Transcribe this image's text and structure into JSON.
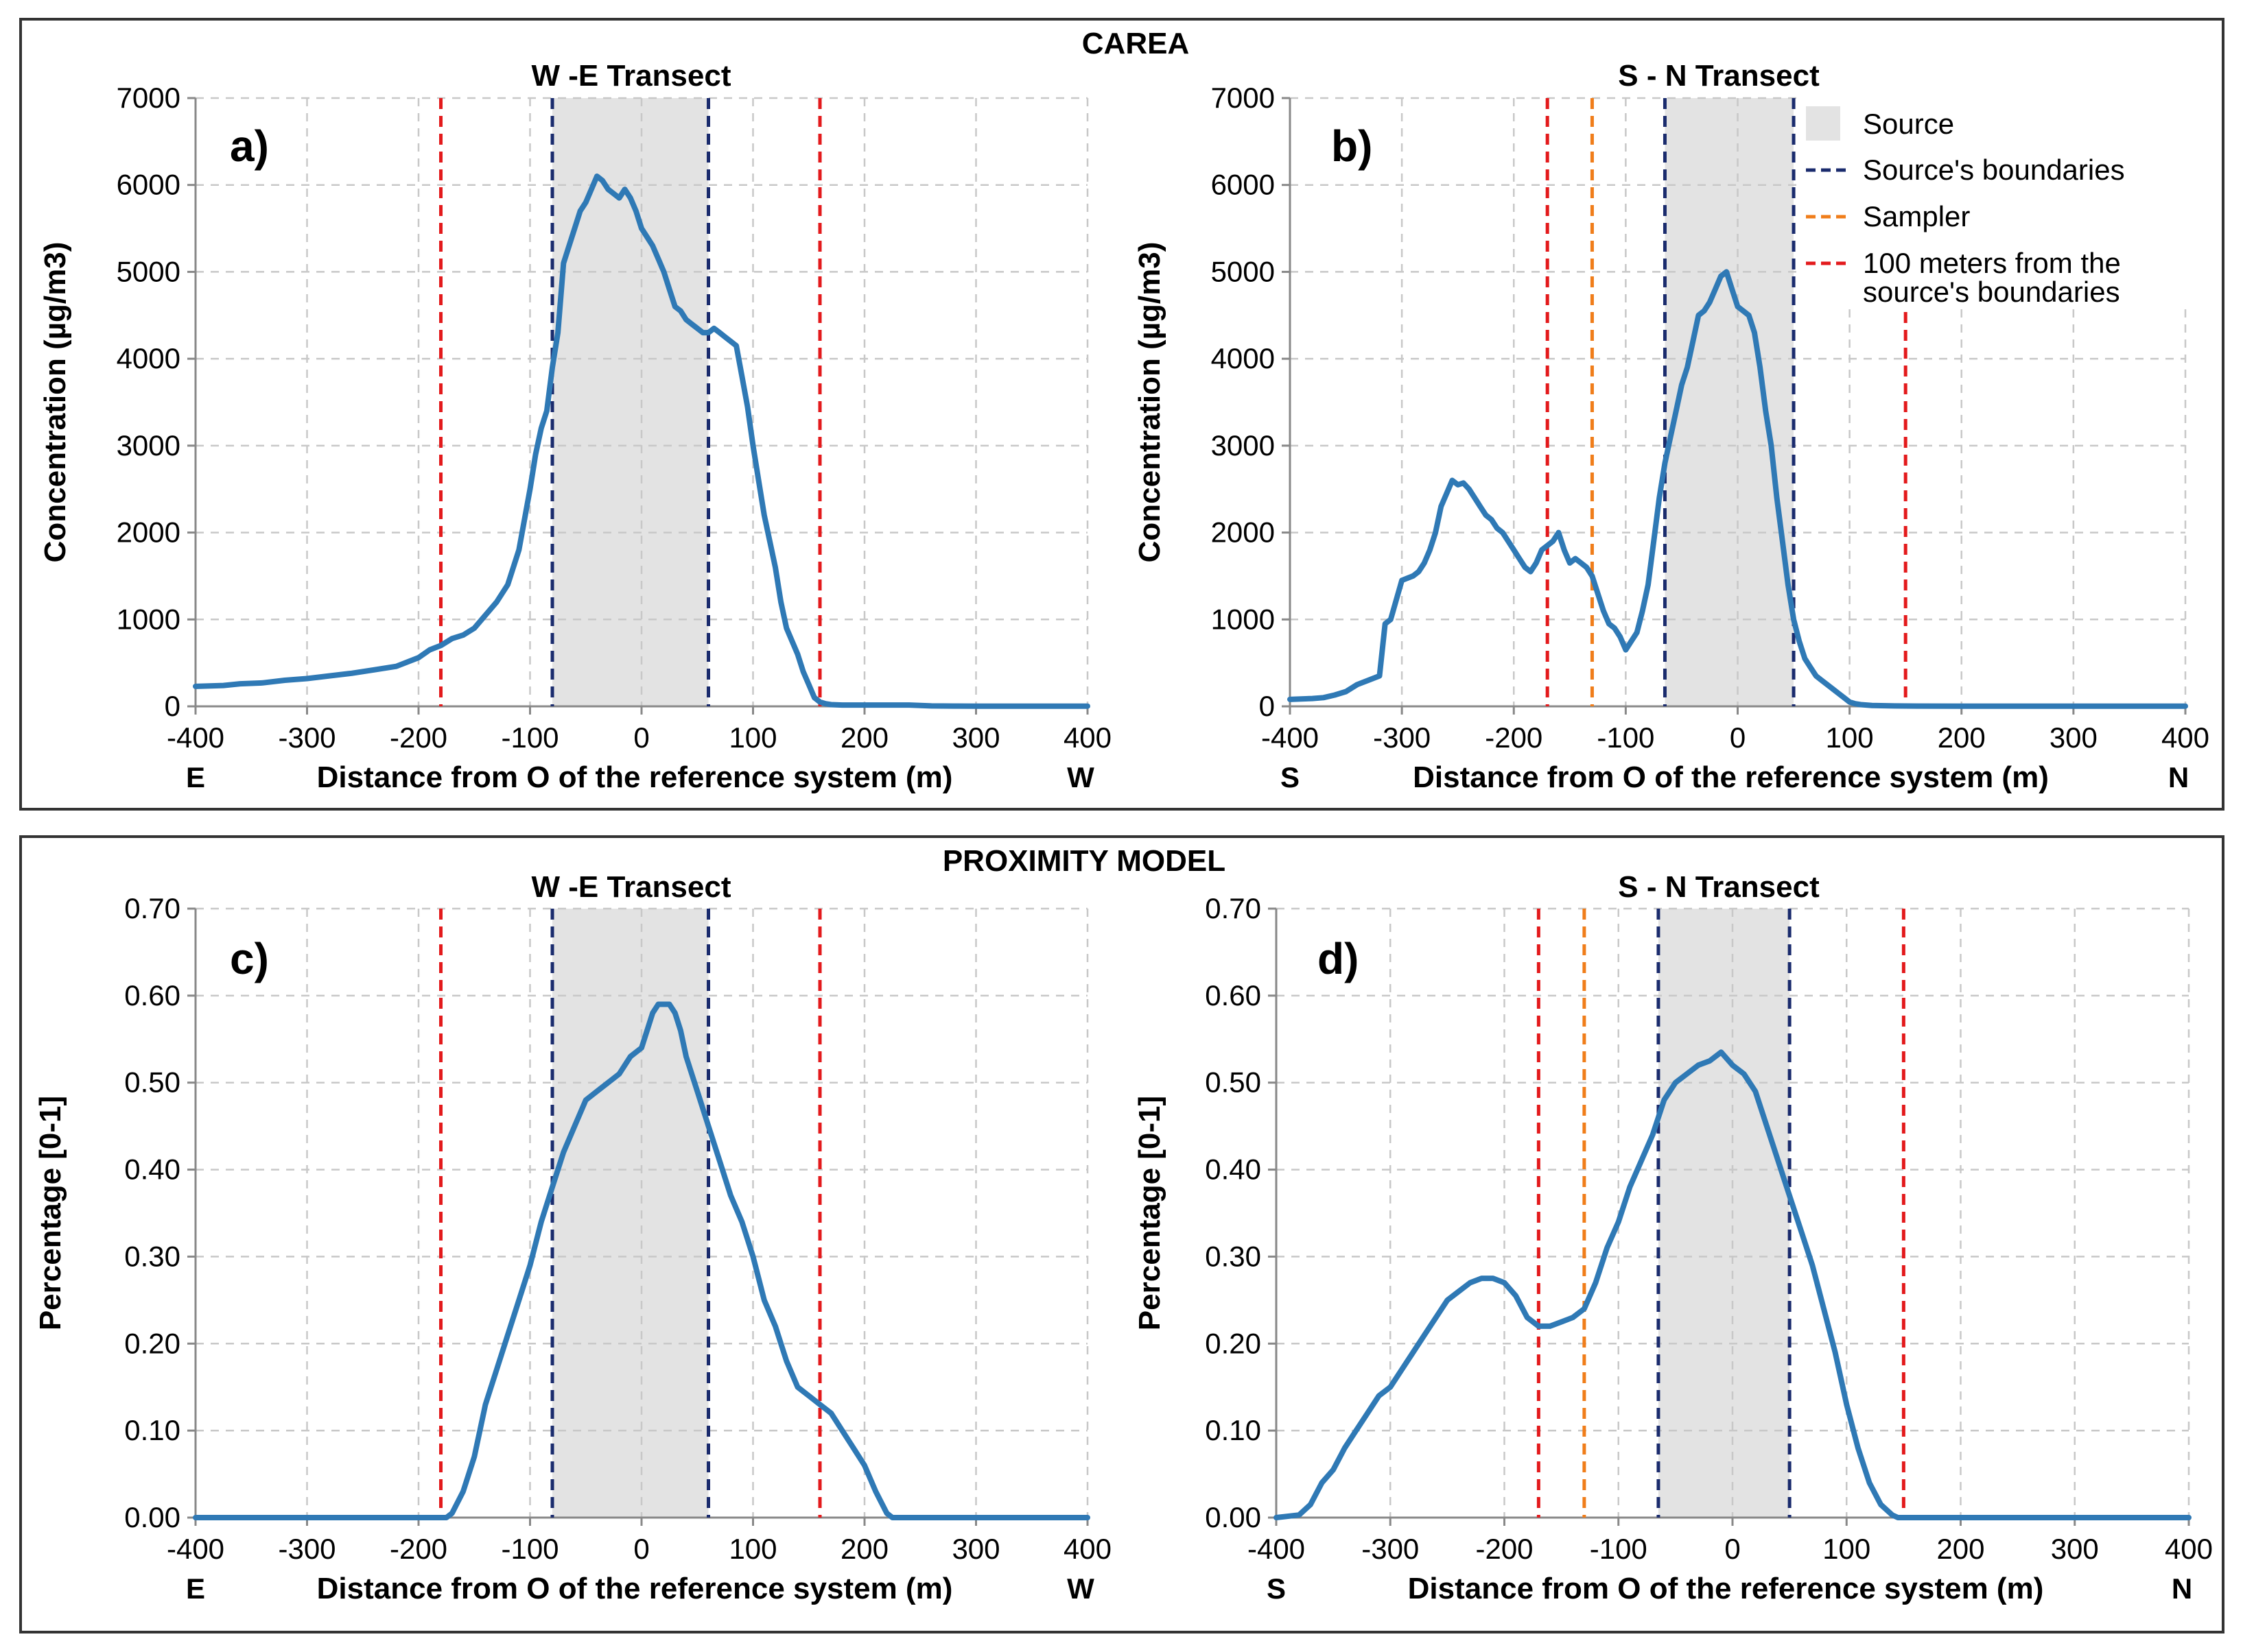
{
  "sections": [
    {
      "title": "CAREA"
    },
    {
      "title": "PROXIMITY MODEL"
    }
  ],
  "legend": {
    "source": "Source",
    "source_boundaries": "Source's boundaries",
    "sampler": "Sampler",
    "hundred_m_line1": "100 meters from the",
    "hundred_m_line2": "source's boundaries"
  },
  "colors": {
    "series_line": "#2f79b5",
    "series_line_light": "#5b9bd0",
    "source_fill": "#e3e3e3",
    "boundary": "#1a2b6d",
    "sampler": "#f07d1a",
    "hundred_m": "#e31a1c"
  },
  "chart_data": [
    {
      "type": "line",
      "panel_label": "a)",
      "title": "W -E Transect",
      "xlabel": "Distance from O of the reference system (m)",
      "ylabel": "Concentration (µg/m3)",
      "x_left_label": "E",
      "x_right_label": "W",
      "xlim": [
        -400,
        400
      ],
      "ylim": [
        0,
        7000
      ],
      "xticks": [
        -400,
        -300,
        -200,
        -100,
        0,
        100,
        200,
        300,
        400
      ],
      "yticks": [
        0,
        1000,
        2000,
        3000,
        4000,
        5000,
        6000,
        7000
      ],
      "ytick_labels": [
        "0",
        "1000",
        "2000",
        "3000",
        "4000",
        "5000",
        "6000",
        "7000"
      ],
      "grid": true,
      "source_band": [
        -80,
        60
      ],
      "boundaries": [
        -80,
        60
      ],
      "hundred_m_lines": [
        -180,
        160
      ],
      "sampler": null,
      "series": [
        {
          "x": [
            -400,
            -375,
            -360,
            -340,
            -320,
            -300,
            -280,
            -260,
            -240,
            -220,
            -200,
            -190,
            -180,
            -170,
            -160,
            -150,
            -140,
            -130,
            -120,
            -110,
            -100,
            -95,
            -90,
            -85,
            -80,
            -75,
            -70,
            -65,
            -60,
            -55,
            -50,
            -45,
            -40,
            -35,
            -30,
            -25,
            -20,
            -15,
            -10,
            -5,
            0,
            5,
            10,
            15,
            20,
            25,
            30,
            35,
            40,
            45,
            50,
            55,
            60,
            65,
            70,
            75,
            80,
            85,
            90,
            95,
            100,
            105,
            110,
            115,
            120,
            125,
            130,
            135,
            140,
            145,
            150,
            155,
            160,
            165,
            170,
            180,
            200,
            220,
            240,
            250,
            260,
            280,
            300,
            320,
            340,
            360,
            380,
            400
          ],
          "y": [
            230,
            240,
            260,
            270,
            300,
            320,
            350,
            380,
            420,
            460,
            560,
            650,
            700,
            780,
            820,
            900,
            1050,
            1200,
            1400,
            1800,
            2500,
            2900,
            3200,
            3400,
            3900,
            4300,
            5100,
            5300,
            5500,
            5700,
            5800,
            5950,
            6100,
            6050,
            5950,
            5900,
            5850,
            5950,
            5850,
            5700,
            5500,
            5400,
            5300,
            5150,
            5000,
            4800,
            4600,
            4550,
            4450,
            4400,
            4350,
            4300,
            4300,
            4350,
            4300,
            4250,
            4200,
            4150,
            3800,
            3450,
            3000,
            2600,
            2200,
            1900,
            1600,
            1200,
            900,
            750,
            600,
            400,
            250,
            100,
            50,
            30,
            20,
            15,
            15,
            15,
            15,
            10,
            5,
            3,
            2,
            2,
            2,
            2,
            2,
            2
          ]
        }
      ]
    },
    {
      "type": "line",
      "panel_label": "b)",
      "title": "S - N Transect",
      "xlabel": "Distance from O of the reference system (m)",
      "ylabel": "Concentration (µg/m3)",
      "x_left_label": "S",
      "x_right_label": "N",
      "xlim": [
        -400,
        400
      ],
      "ylim": [
        0,
        7000
      ],
      "xticks": [
        -400,
        -300,
        -200,
        -100,
        0,
        100,
        200,
        300,
        400
      ],
      "yticks": [
        0,
        1000,
        2000,
        3000,
        4000,
        5000,
        6000,
        7000
      ],
      "ytick_labels": [
        "0",
        "1000",
        "2000",
        "3000",
        "4000",
        "5000",
        "6000",
        "7000"
      ],
      "grid": true,
      "source_band": [
        -65,
        50
      ],
      "boundaries": [
        -65,
        50
      ],
      "hundred_m_lines": [
        -170,
        150
      ],
      "sampler": -130,
      "series": [
        {
          "x": [
            -400,
            -380,
            -370,
            -360,
            -350,
            -340,
            -330,
            -320,
            -315,
            -310,
            -300,
            -290,
            -285,
            -280,
            -275,
            -270,
            -265,
            -260,
            -255,
            -250,
            -245,
            -240,
            -235,
            -230,
            -225,
            -220,
            -215,
            -210,
            -205,
            -200,
            -195,
            -190,
            -185,
            -180,
            -175,
            -170,
            -165,
            -160,
            -155,
            -150,
            -145,
            -140,
            -135,
            -130,
            -125,
            -120,
            -115,
            -110,
            -105,
            -100,
            -95,
            -90,
            -85,
            -80,
            -75,
            -70,
            -65,
            -60,
            -55,
            -50,
            -45,
            -40,
            -35,
            -30,
            -25,
            -20,
            -15,
            -10,
            -5,
            0,
            5,
            10,
            15,
            20,
            25,
            30,
            35,
            40,
            45,
            50,
            55,
            60,
            65,
            70,
            75,
            80,
            85,
            90,
            95,
            100,
            105,
            110,
            115,
            120,
            140,
            160,
            200,
            250,
            300,
            350,
            400
          ],
          "y": [
            80,
            90,
            100,
            130,
            170,
            250,
            300,
            350,
            950,
            1000,
            1450,
            1500,
            1550,
            1650,
            1800,
            2000,
            2300,
            2450,
            2600,
            2550,
            2570,
            2500,
            2400,
            2300,
            2200,
            2150,
            2050,
            2000,
            1900,
            1800,
            1700,
            1600,
            1550,
            1650,
            1800,
            1850,
            1900,
            2000,
            1800,
            1650,
            1700,
            1650,
            1600,
            1500,
            1300,
            1100,
            950,
            900,
            800,
            650,
            750,
            850,
            1100,
            1400,
            1900,
            2400,
            2800,
            3100,
            3400,
            3700,
            3900,
            4200,
            4500,
            4550,
            4650,
            4800,
            4950,
            5000,
            4800,
            4600,
            4550,
            4500,
            4300,
            3900,
            3400,
            3000,
            2400,
            1900,
            1400,
            1000,
            750,
            550,
            450,
            350,
            300,
            250,
            200,
            150,
            100,
            50,
            30,
            20,
            15,
            10,
            5,
            3,
            2,
            2,
            2,
            2,
            2
          ]
        }
      ]
    },
    {
      "type": "line",
      "panel_label": "c)",
      "title": "W -E Transect",
      "xlabel": "Distance from O of the reference system (m)",
      "ylabel": "Percentage [0-1]",
      "x_left_label": "E",
      "x_right_label": "W",
      "xlim": [
        -400,
        400
      ],
      "ylim": [
        0,
        0.7
      ],
      "xticks": [
        -400,
        -300,
        -200,
        -100,
        0,
        100,
        200,
        300,
        400
      ],
      "yticks": [
        0,
        0.1,
        0.2,
        0.3,
        0.4,
        0.5,
        0.6,
        0.7
      ],
      "ytick_labels": [
        "0.00",
        "0.10",
        "0.20",
        "0.30",
        "0.40",
        "0.50",
        "0.60",
        "0.70"
      ],
      "grid": true,
      "source_band": [
        -80,
        60
      ],
      "boundaries": [
        -80,
        60
      ],
      "hundred_m_lines": [
        -180,
        160
      ],
      "sampler": null,
      "series": [
        {
          "x": [
            -400,
            -200,
            -180,
            -175,
            -170,
            -160,
            -150,
            -140,
            -130,
            -120,
            -110,
            -100,
            -90,
            -80,
            -70,
            -60,
            -50,
            -40,
            -30,
            -20,
            -10,
            0,
            5,
            10,
            15,
            20,
            25,
            30,
            35,
            40,
            50,
            60,
            70,
            80,
            90,
            100,
            110,
            120,
            130,
            140,
            150,
            160,
            170,
            180,
            190,
            200,
            210,
            220,
            225,
            230,
            400
          ],
          "y": [
            0,
            0,
            0,
            0,
            0.005,
            0.03,
            0.07,
            0.13,
            0.17,
            0.21,
            0.25,
            0.29,
            0.34,
            0.38,
            0.42,
            0.45,
            0.48,
            0.49,
            0.5,
            0.51,
            0.53,
            0.54,
            0.56,
            0.58,
            0.59,
            0.59,
            0.59,
            0.58,
            0.56,
            0.53,
            0.49,
            0.45,
            0.41,
            0.37,
            0.34,
            0.3,
            0.25,
            0.22,
            0.18,
            0.15,
            0.14,
            0.13,
            0.12,
            0.1,
            0.08,
            0.06,
            0.03,
            0.005,
            0,
            0,
            0
          ]
        }
      ]
    },
    {
      "type": "line",
      "panel_label": "d)",
      "title": "S - N Transect",
      "xlabel": "Distance from O of the reference system (m)",
      "ylabel": "Percentage [0-1]",
      "x_left_label": "S",
      "x_right_label": "N",
      "xlim": [
        -400,
        400
      ],
      "ylim": [
        0,
        0.7
      ],
      "xticks": [
        -400,
        -300,
        -200,
        -100,
        0,
        100,
        200,
        300,
        400
      ],
      "yticks": [
        0,
        0.1,
        0.2,
        0.3,
        0.4,
        0.5,
        0.6,
        0.7
      ],
      "ytick_labels": [
        "0.00",
        "0.10",
        "0.20",
        "0.30",
        "0.40",
        "0.50",
        "0.60",
        "0.70"
      ],
      "grid": true,
      "source_band": [
        -65,
        50
      ],
      "boundaries": [
        -65,
        50
      ],
      "hundred_m_lines": [
        -170,
        150
      ],
      "sampler": -130,
      "series": [
        {
          "x": [
            -400,
            -380,
            -370,
            -360,
            -350,
            -340,
            -330,
            -320,
            -310,
            -300,
            -290,
            -280,
            -270,
            -260,
            -250,
            -240,
            -230,
            -220,
            -210,
            -200,
            -190,
            -180,
            -170,
            -160,
            -150,
            -140,
            -130,
            -120,
            -110,
            -100,
            -90,
            -80,
            -70,
            -60,
            -50,
            -40,
            -30,
            -20,
            -10,
            0,
            10,
            20,
            30,
            40,
            50,
            60,
            70,
            80,
            90,
            100,
            110,
            120,
            130,
            140,
            145,
            150,
            400
          ],
          "y": [
            0,
            0.003,
            0.015,
            0.04,
            0.055,
            0.08,
            0.1,
            0.12,
            0.14,
            0.15,
            0.17,
            0.19,
            0.21,
            0.23,
            0.25,
            0.26,
            0.27,
            0.275,
            0.275,
            0.27,
            0.255,
            0.23,
            0.22,
            0.22,
            0.225,
            0.23,
            0.24,
            0.27,
            0.31,
            0.34,
            0.38,
            0.41,
            0.44,
            0.48,
            0.5,
            0.51,
            0.52,
            0.525,
            0.535,
            0.52,
            0.51,
            0.49,
            0.45,
            0.41,
            0.37,
            0.33,
            0.29,
            0.24,
            0.19,
            0.13,
            0.08,
            0.04,
            0.015,
            0.003,
            0,
            0,
            0
          ]
        }
      ]
    }
  ]
}
